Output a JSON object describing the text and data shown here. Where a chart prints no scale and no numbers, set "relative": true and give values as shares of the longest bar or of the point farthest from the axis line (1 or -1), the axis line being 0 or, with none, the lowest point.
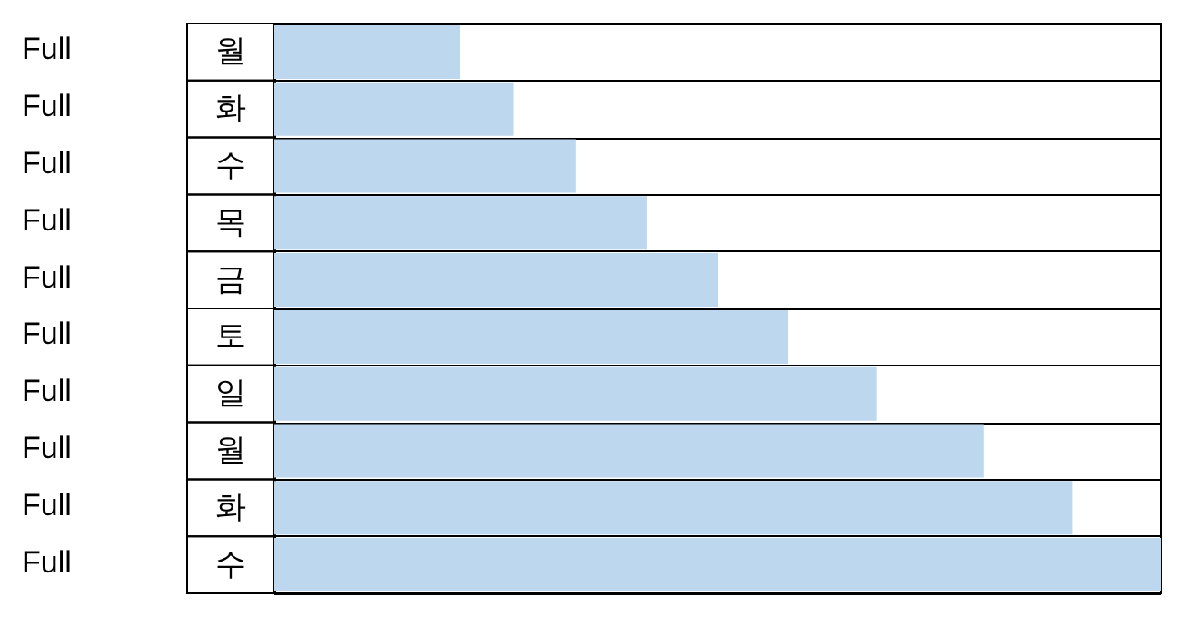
{
  "chart_data": {
    "type": "bar",
    "orientation": "horizontal",
    "relative": true,
    "categories": [
      "월",
      "화",
      "수",
      "목",
      "금",
      "토",
      "일",
      "월",
      "화",
      "수"
    ],
    "values": [
      0.21,
      0.27,
      0.34,
      0.42,
      0.5,
      0.58,
      0.68,
      0.8,
      0.9,
      1
    ],
    "color": "#bdd7ee",
    "annotations": [
      "Full",
      "Full",
      "Full",
      "Full",
      "Full",
      "Full",
      "Full",
      "Full",
      "Full",
      "Full"
    ],
    "grid": "y"
  }
}
